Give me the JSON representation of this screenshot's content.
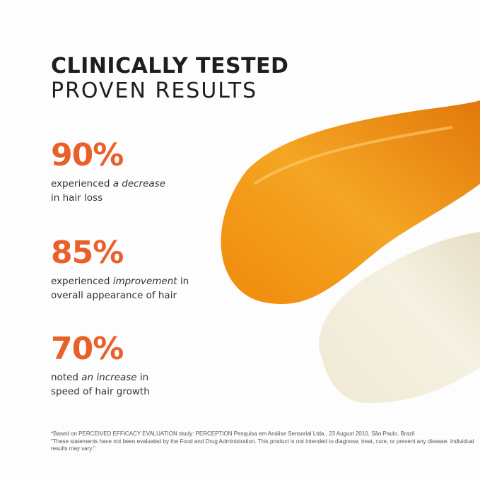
{
  "heading": {
    "line1": "CLINICALLY TESTED",
    "line2": "PROVEN RESULTS"
  },
  "stats": [
    {
      "value": "90%",
      "pre": "experienced ",
      "em": "a decrease",
      "post": "",
      "line2": "in hair loss"
    },
    {
      "value": "85%",
      "pre": "experienced ",
      "em": "improvement",
      "post": " in",
      "line2": "overall appearance of hair"
    },
    {
      "value": "70%",
      "pre": "noted ",
      "em": "an increase",
      "post": " in",
      "line2": "speed of hair growth"
    }
  ],
  "footnote": {
    "line1": "*Based on PERCEIVED EFFICACY EVALUATION study: PERCEPTION Pesquisa em Análise Sensorial Ltda., 23 August 2010, São Paulo. Brazil",
    "line2": "\"These statements have not been evaluated by the Food and Drug Administration. This product is not intended to diagnose, treat, cure, or prevent any disease. Individual results may vary.\""
  },
  "colors": {
    "accent": "#e8612a",
    "serum": "#f29a12",
    "cream": "#f1ecd9"
  }
}
